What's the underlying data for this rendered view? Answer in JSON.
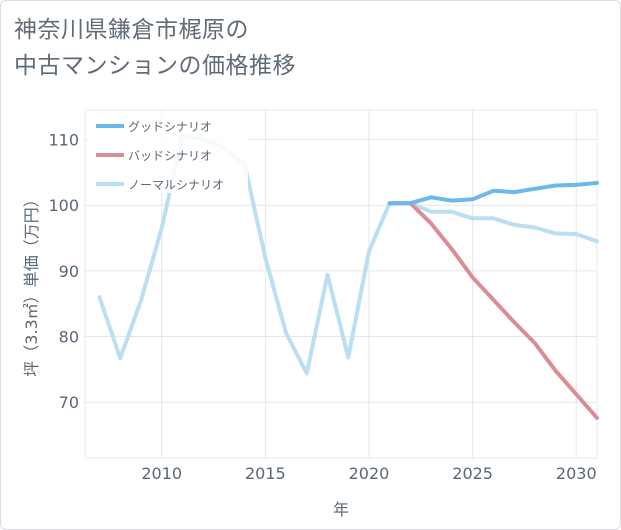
{
  "title_lines": [
    "神奈川県鎌倉市梶原の",
    "中古マンションの価格推移"
  ],
  "chart_data": {
    "type": "line",
    "title": "神奈川県鎌倉市梶原の中古マンションの価格推移",
    "xlabel": "年",
    "ylabel": "坪（3.3㎡）単価（万円）",
    "xlim": [
      2006.3,
      2031
    ],
    "ylim": [
      61.5,
      114.5
    ],
    "xticks": [
      2010,
      2015,
      2020,
      2025,
      2030
    ],
    "yticks": [
      70,
      80,
      90,
      100,
      110
    ],
    "legend_position": "top-left",
    "series": [
      {
        "name": "グッドシナリオ",
        "color": "#6cb8ec",
        "x": [
          2021,
          2022,
          2023,
          2024,
          2025,
          2026,
          2027,
          2028,
          2029,
          2030,
          2031
        ],
        "values": [
          100.3,
          100.3,
          101.2,
          100.7,
          100.9,
          102.2,
          102.0,
          102.5,
          103.0,
          103.1,
          103.4
        ]
      },
      {
        "name": "バッドシナリオ",
        "color": "#dc8c94",
        "x": [
          2021,
          2022,
          2023,
          2024,
          2025,
          2026,
          2027,
          2028,
          2029,
          2030,
          2031
        ],
        "values": [
          100.3,
          100.3,
          97.2,
          93.3,
          89.0,
          85.6,
          82.2,
          79.0,
          74.8,
          71.2,
          67.6
        ]
      },
      {
        "name": "ノーマルシナリオ",
        "color": "#b9dff0",
        "x": [
          2007,
          2008,
          2009,
          2010,
          2011,
          2012,
          2013,
          2014,
          2015,
          2016,
          2017,
          2018,
          2019,
          2020,
          2021,
          2022,
          2023,
          2024,
          2025,
          2026,
          2027,
          2028,
          2029,
          2030,
          2031
        ],
        "values": [
          86.0,
          76.7,
          85.5,
          96.5,
          110.6,
          110.0,
          108.8,
          106.2,
          92.0,
          80.5,
          74.4,
          89.4,
          76.8,
          93.0,
          100.3,
          100.3,
          99.0,
          99.0,
          98.0,
          98.0,
          97.0,
          96.6,
          95.7,
          95.6,
          94.5
        ]
      }
    ]
  }
}
